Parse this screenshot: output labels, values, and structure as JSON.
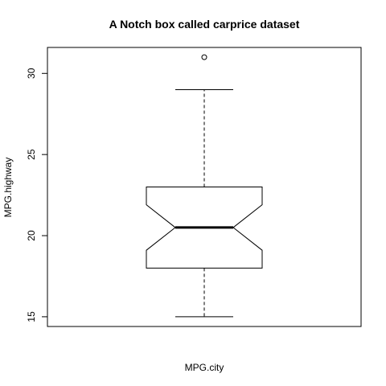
{
  "chart_data": {
    "type": "box",
    "notched": true,
    "title": "A Notch box called carprice dataset",
    "xlabel": "MPG.city",
    "ylabel": "MPG.highway",
    "ylim": [
      14.4,
      31.6
    ],
    "yticks": [
      15,
      20,
      25,
      30
    ],
    "ytick_labels": [
      "15",
      "20",
      "25",
      "30"
    ],
    "box": {
      "whisker_low": 15,
      "q1": 18,
      "notch_low": 19.1,
      "median": 20.5,
      "notch_high": 21.9,
      "q3": 23,
      "whisker_high": 29,
      "outliers": [
        31
      ]
    },
    "grid": false,
    "legend": "none",
    "colors": {
      "line": "#000000",
      "background": "#ffffff"
    }
  }
}
